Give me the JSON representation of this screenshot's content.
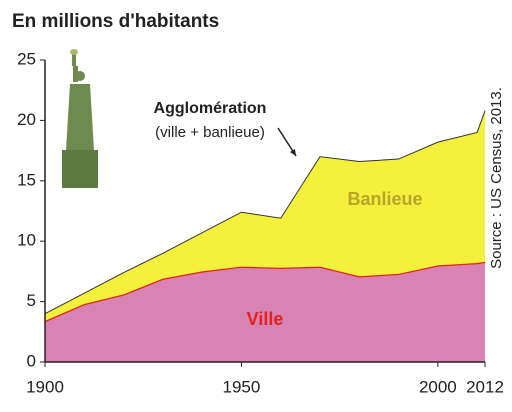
{
  "chart_data": {
    "type": "stacked_area",
    "title": "En millions d'habitants",
    "annotation": "Agglomération",
    "annotation_sub": "(ville + banlieue)",
    "source": "Source : US Census, 2013.",
    "x": [
      1900,
      1910,
      1920,
      1930,
      1940,
      1950,
      1960,
      1970,
      1980,
      1990,
      2000,
      2010,
      2012
    ],
    "series": [
      {
        "name": "Ville",
        "color": "#d982b4",
        "line_color": "#e3201b",
        "label_color": "#e3201b",
        "values": [
          3.4,
          4.8,
          5.6,
          6.9,
          7.5,
          7.9,
          7.8,
          7.9,
          7.1,
          7.3,
          8.0,
          8.2,
          8.3
        ]
      },
      {
        "name": "Banlieue",
        "color": "#f4f03c",
        "line_color": "#333333",
        "label_color": "#b9a52a",
        "values": [
          0.6,
          0.9,
          1.8,
          2.1,
          3.2,
          4.5,
          4.1,
          9.1,
          9.5,
          9.5,
          10.2,
          10.8,
          12.5
        ]
      }
    ],
    "xlim": [
      1900,
      2012
    ],
    "xticks": [
      1900,
      1950,
      2000,
      2012
    ],
    "ylim": [
      0,
      25
    ],
    "yticks": [
      0,
      5,
      10,
      15,
      20,
      25
    ],
    "grid": false
  }
}
